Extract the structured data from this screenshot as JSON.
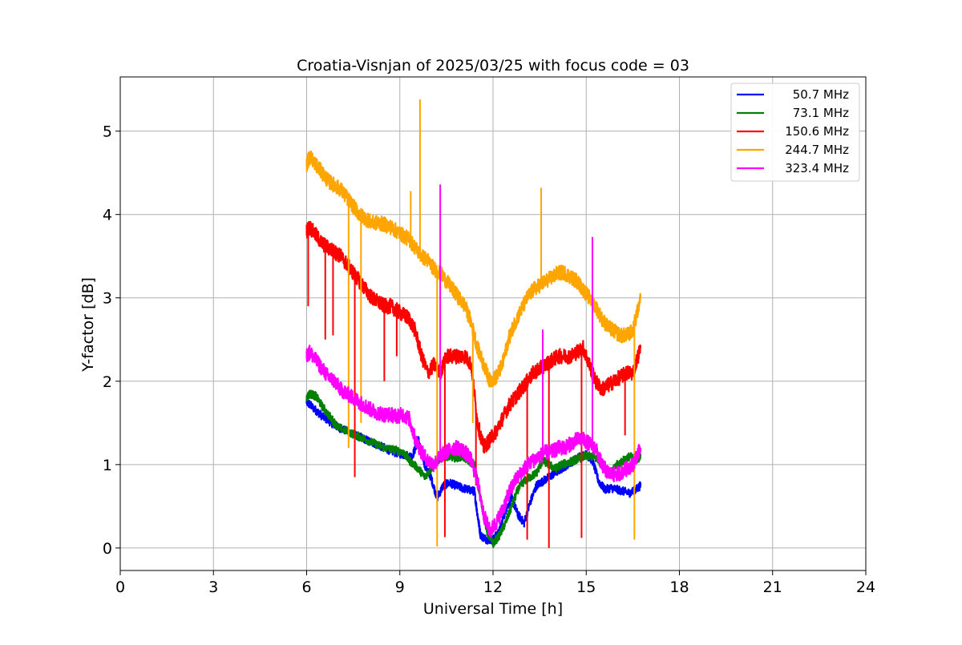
{
  "chart_data": {
    "type": "line",
    "title": "Croatia-Visnjan of 2025/03/25 with focus code = 03",
    "xlabel": "Universal Time [h]",
    "ylabel": "Y-factor [dB]",
    "xlim": [
      0,
      24
    ],
    "ylim": [
      -0.27,
      5.65
    ],
    "xticks": [
      0,
      3,
      6,
      9,
      12,
      15,
      18,
      21,
      24
    ],
    "yticks": [
      0,
      1,
      2,
      3,
      4,
      5
    ],
    "grid": true,
    "legend_position": "top-right",
    "series": [
      {
        "name": "50.7 MHz",
        "color": "#0000ff",
        "x": [
          6.0,
          6.1,
          6.3,
          6.5,
          6.8,
          7.0,
          7.3,
          7.6,
          7.9,
          8.2,
          8.5,
          8.8,
          9.1,
          9.4,
          9.6,
          9.8,
          10.0,
          10.2,
          10.4,
          10.6,
          10.8,
          11.0,
          11.2,
          11.4,
          11.5,
          11.6,
          11.8,
          12.0,
          12.2,
          12.4,
          12.6,
          12.8,
          13.0,
          13.2,
          13.4,
          13.6,
          13.8,
          14.0,
          14.2,
          14.4,
          14.6,
          14.8,
          15.0,
          15.2,
          15.4,
          15.6,
          15.8,
          16.0,
          16.2,
          16.4,
          16.6,
          16.75
        ],
        "y": [
          1.75,
          1.72,
          1.65,
          1.58,
          1.5,
          1.45,
          1.4,
          1.35,
          1.3,
          1.25,
          1.2,
          1.15,
          1.12,
          1.1,
          1.3,
          1.0,
          0.85,
          0.6,
          0.75,
          0.78,
          0.75,
          0.72,
          0.7,
          0.68,
          0.4,
          0.15,
          0.1,
          0.1,
          0.2,
          0.45,
          0.6,
          0.4,
          0.3,
          0.55,
          0.75,
          0.8,
          0.85,
          0.9,
          0.95,
          1.0,
          1.05,
          1.1,
          1.12,
          1.05,
          0.8,
          0.7,
          0.72,
          0.7,
          0.68,
          0.66,
          0.7,
          0.75
        ]
      },
      {
        "name": "73.1 MHz",
        "color": "#008000",
        "x": [
          6.0,
          6.1,
          6.3,
          6.5,
          6.8,
          7.0,
          7.3,
          7.6,
          7.9,
          8.2,
          8.5,
          8.8,
          9.1,
          9.3,
          9.6,
          9.8,
          10.0,
          10.2,
          10.4,
          10.6,
          10.8,
          11.0,
          11.2,
          11.4,
          11.6,
          11.8,
          12.0,
          12.2,
          12.4,
          12.6,
          12.8,
          13.0,
          13.2,
          13.4,
          13.6,
          13.8,
          14.0,
          14.2,
          14.4,
          14.6,
          14.8,
          15.0,
          15.2,
          15.4,
          15.6,
          15.8,
          16.0,
          16.2,
          16.4,
          16.6,
          16.75
        ],
        "y": [
          1.8,
          1.85,
          1.82,
          1.7,
          1.55,
          1.45,
          1.4,
          1.35,
          1.3,
          1.25,
          1.2,
          1.18,
          1.15,
          1.05,
          0.95,
          0.85,
          0.95,
          1.05,
          1.1,
          1.1,
          1.08,
          1.1,
          1.05,
          1.0,
          0.6,
          0.2,
          0.05,
          0.15,
          0.3,
          0.5,
          0.7,
          0.8,
          0.85,
          0.9,
          1.05,
          1.0,
          0.95,
          1.0,
          1.02,
          1.05,
          1.08,
          1.1,
          1.1,
          1.05,
          0.95,
          0.9,
          1.0,
          1.05,
          1.1,
          1.05,
          1.1
        ]
      },
      {
        "name": "150.6 MHz",
        "color": "#ff0000",
        "x": [
          6.0,
          6.1,
          6.3,
          6.5,
          6.7,
          6.9,
          7.1,
          7.3,
          7.5,
          7.7,
          7.9,
          8.1,
          8.3,
          8.5,
          8.7,
          8.9,
          9.1,
          9.3,
          9.5,
          9.7,
          9.9,
          10.1,
          10.3,
          10.5,
          10.7,
          10.9,
          11.1,
          11.3,
          11.5,
          11.7,
          11.9,
          12.1,
          12.3,
          12.5,
          12.7,
          12.9,
          13.1,
          13.3,
          13.5,
          13.7,
          13.9,
          14.1,
          14.3,
          14.5,
          14.7,
          14.9,
          15.1,
          15.3,
          15.5,
          15.7,
          15.9,
          16.1,
          16.3,
          16.5,
          16.75
        ],
        "y": [
          3.8,
          3.85,
          3.75,
          3.65,
          3.6,
          3.55,
          3.5,
          3.4,
          3.3,
          3.2,
          3.1,
          3.0,
          2.95,
          2.9,
          2.9,
          2.85,
          2.8,
          2.75,
          2.6,
          2.3,
          2.1,
          2.2,
          2.1,
          2.3,
          2.3,
          2.3,
          2.3,
          2.2,
          1.5,
          1.2,
          1.3,
          1.4,
          1.55,
          1.7,
          1.8,
          1.9,
          2.0,
          2.1,
          2.15,
          2.2,
          2.25,
          2.3,
          2.3,
          2.3,
          2.35,
          2.4,
          2.2,
          2.0,
          1.9,
          1.95,
          2.0,
          2.05,
          2.1,
          2.1,
          2.4
        ]
      },
      {
        "name": "244.7 MHz",
        "color": "#ffa500",
        "x": [
          6.0,
          6.1,
          6.3,
          6.5,
          6.7,
          6.9,
          7.1,
          7.3,
          7.5,
          7.7,
          7.9,
          8.1,
          8.3,
          8.5,
          8.7,
          8.9,
          9.1,
          9.3,
          9.5,
          9.7,
          9.9,
          10.1,
          10.3,
          10.5,
          10.7,
          10.9,
          11.1,
          11.3,
          11.5,
          11.7,
          11.9,
          12.1,
          12.3,
          12.5,
          12.7,
          12.9,
          13.1,
          13.3,
          13.5,
          13.7,
          13.9,
          14.1,
          14.3,
          14.5,
          14.7,
          14.9,
          15.1,
          15.3,
          15.5,
          15.7,
          15.9,
          16.1,
          16.3,
          16.5,
          16.75
        ],
        "y": [
          4.6,
          4.7,
          4.6,
          4.5,
          4.4,
          4.35,
          4.3,
          4.2,
          4.1,
          4.0,
          3.95,
          3.9,
          3.9,
          3.88,
          3.85,
          3.8,
          3.75,
          3.7,
          3.6,
          3.5,
          3.45,
          3.35,
          3.3,
          3.2,
          3.1,
          3.0,
          2.9,
          2.7,
          2.4,
          2.2,
          2.0,
          2.05,
          2.2,
          2.5,
          2.7,
          2.85,
          3.0,
          3.1,
          3.15,
          3.2,
          3.25,
          3.3,
          3.3,
          3.25,
          3.2,
          3.1,
          3.0,
          2.9,
          2.75,
          2.65,
          2.6,
          2.55,
          2.55,
          2.6,
          3.0
        ]
      },
      {
        "name": "323.4 MHz",
        "color": "#ff00ff",
        "x": [
          6.0,
          6.1,
          6.3,
          6.5,
          6.7,
          6.9,
          7.1,
          7.3,
          7.5,
          7.7,
          7.9,
          8.1,
          8.3,
          8.5,
          8.7,
          8.9,
          9.1,
          9.3,
          9.5,
          9.7,
          9.9,
          10.1,
          10.3,
          10.5,
          10.7,
          10.9,
          11.1,
          11.3,
          11.5,
          11.7,
          11.9,
          12.1,
          12.3,
          12.5,
          12.7,
          12.9,
          13.1,
          13.3,
          13.5,
          13.7,
          13.9,
          14.1,
          14.3,
          14.5,
          14.7,
          14.9,
          15.1,
          15.3,
          15.5,
          15.7,
          15.9,
          16.1,
          16.3,
          16.5,
          16.75
        ],
        "y": [
          2.3,
          2.35,
          2.25,
          2.15,
          2.05,
          2.0,
          1.9,
          1.85,
          1.8,
          1.75,
          1.7,
          1.65,
          1.62,
          1.6,
          1.6,
          1.58,
          1.6,
          1.55,
          1.3,
          1.15,
          1.05,
          1.0,
          1.1,
          1.15,
          1.2,
          1.2,
          1.15,
          1.05,
          0.8,
          0.4,
          0.2,
          0.3,
          0.45,
          0.65,
          0.8,
          0.9,
          1.0,
          1.05,
          1.1,
          1.15,
          1.15,
          1.2,
          1.2,
          1.25,
          1.3,
          1.3,
          1.25,
          1.2,
          1.0,
          0.9,
          0.88,
          0.9,
          0.95,
          1.0,
          1.2
        ]
      }
    ],
    "spikes": [
      {
        "series": "150.6 MHz",
        "x": 6.05,
        "y": 2.9
      },
      {
        "series": "150.6 MHz",
        "x": 6.6,
        "y": 2.5
      },
      {
        "series": "150.6 MHz",
        "x": 6.85,
        "y": 2.55
      },
      {
        "series": "150.6 MHz",
        "x": 7.55,
        "y": 0.85
      },
      {
        "series": "150.6 MHz",
        "x": 8.5,
        "y": 2.0
      },
      {
        "series": "150.6 MHz",
        "x": 8.9,
        "y": 2.3
      },
      {
        "series": "150.6 MHz",
        "x": 10.45,
        "y": 0.13
      },
      {
        "series": "150.6 MHz",
        "x": 11.45,
        "y": 0.75
      },
      {
        "series": "150.6 MHz",
        "x": 13.1,
        "y": 0.1
      },
      {
        "series": "150.6 MHz",
        "x": 13.8,
        "y": 0.0
      },
      {
        "series": "150.6 MHz",
        "x": 14.85,
        "y": 0.12
      },
      {
        "series": "150.6 MHz",
        "x": 16.25,
        "y": 1.35
      },
      {
        "series": "244.7 MHz",
        "x": 7.35,
        "y": 1.2
      },
      {
        "series": "244.7 MHz",
        "x": 7.75,
        "y": 1.5
      },
      {
        "series": "244.7 MHz",
        "x": 9.65,
        "y": 5.38
      },
      {
        "series": "244.7 MHz",
        "x": 10.2,
        "y": 0.02
      },
      {
        "series": "244.7 MHz",
        "x": 11.35,
        "y": 1.5
      },
      {
        "series": "244.7 MHz",
        "x": 13.55,
        "y": 4.32
      },
      {
        "series": "244.7 MHz",
        "x": 16.55,
        "y": 0.1
      },
      {
        "series": "244.7 MHz",
        "x": 9.35,
        "y": 4.28
      },
      {
        "series": "323.4 MHz",
        "x": 10.3,
        "y": 4.36
      },
      {
        "series": "323.4 MHz",
        "x": 13.6,
        "y": 2.62
      },
      {
        "series": "323.4 MHz",
        "x": 15.2,
        "y": 3.73
      }
    ]
  }
}
